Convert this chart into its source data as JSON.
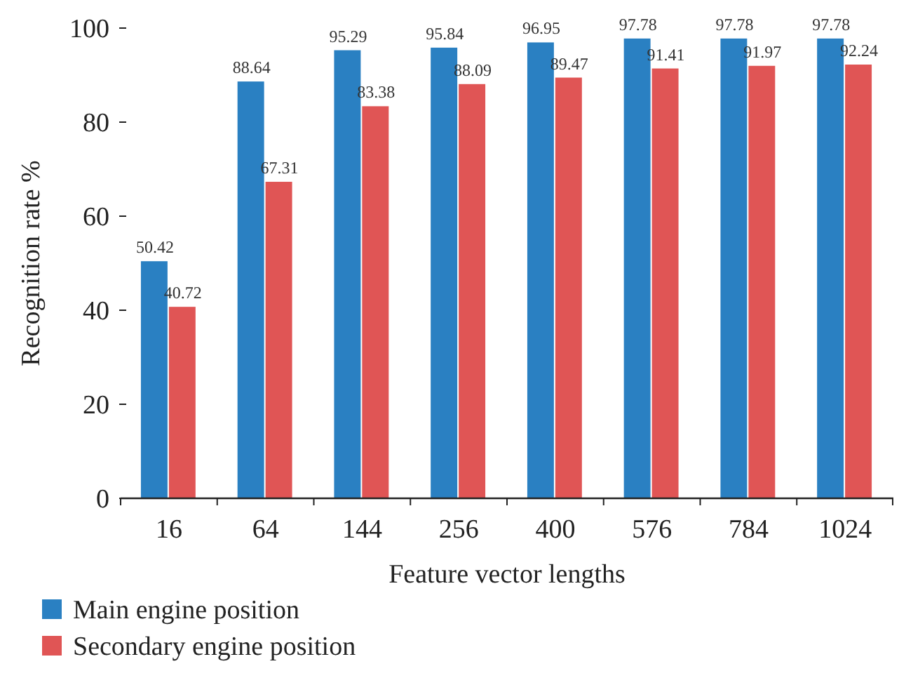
{
  "chart_data": {
    "type": "bar",
    "xlabel": "Feature vector lengths",
    "ylabel": "Recognition rate %",
    "categories": [
      "16",
      "64",
      "144",
      "256",
      "400",
      "576",
      "784",
      "1024"
    ],
    "series": [
      {
        "name": "Main engine position",
        "color": "#2a80c2",
        "values": [
          50.42,
          88.64,
          95.29,
          95.84,
          96.95,
          97.78,
          97.78,
          97.78
        ]
      },
      {
        "name": "Secondary engine position",
        "color": "#e05555",
        "values": [
          40.72,
          67.31,
          83.38,
          88.09,
          89.47,
          91.41,
          91.97,
          92.24
        ]
      }
    ],
    "ylim": [
      0,
      100
    ],
    "yticks": [
      0,
      20,
      40,
      60,
      80,
      100
    ],
    "data_labels": true,
    "legend": "bottom left",
    "grid": false
  }
}
